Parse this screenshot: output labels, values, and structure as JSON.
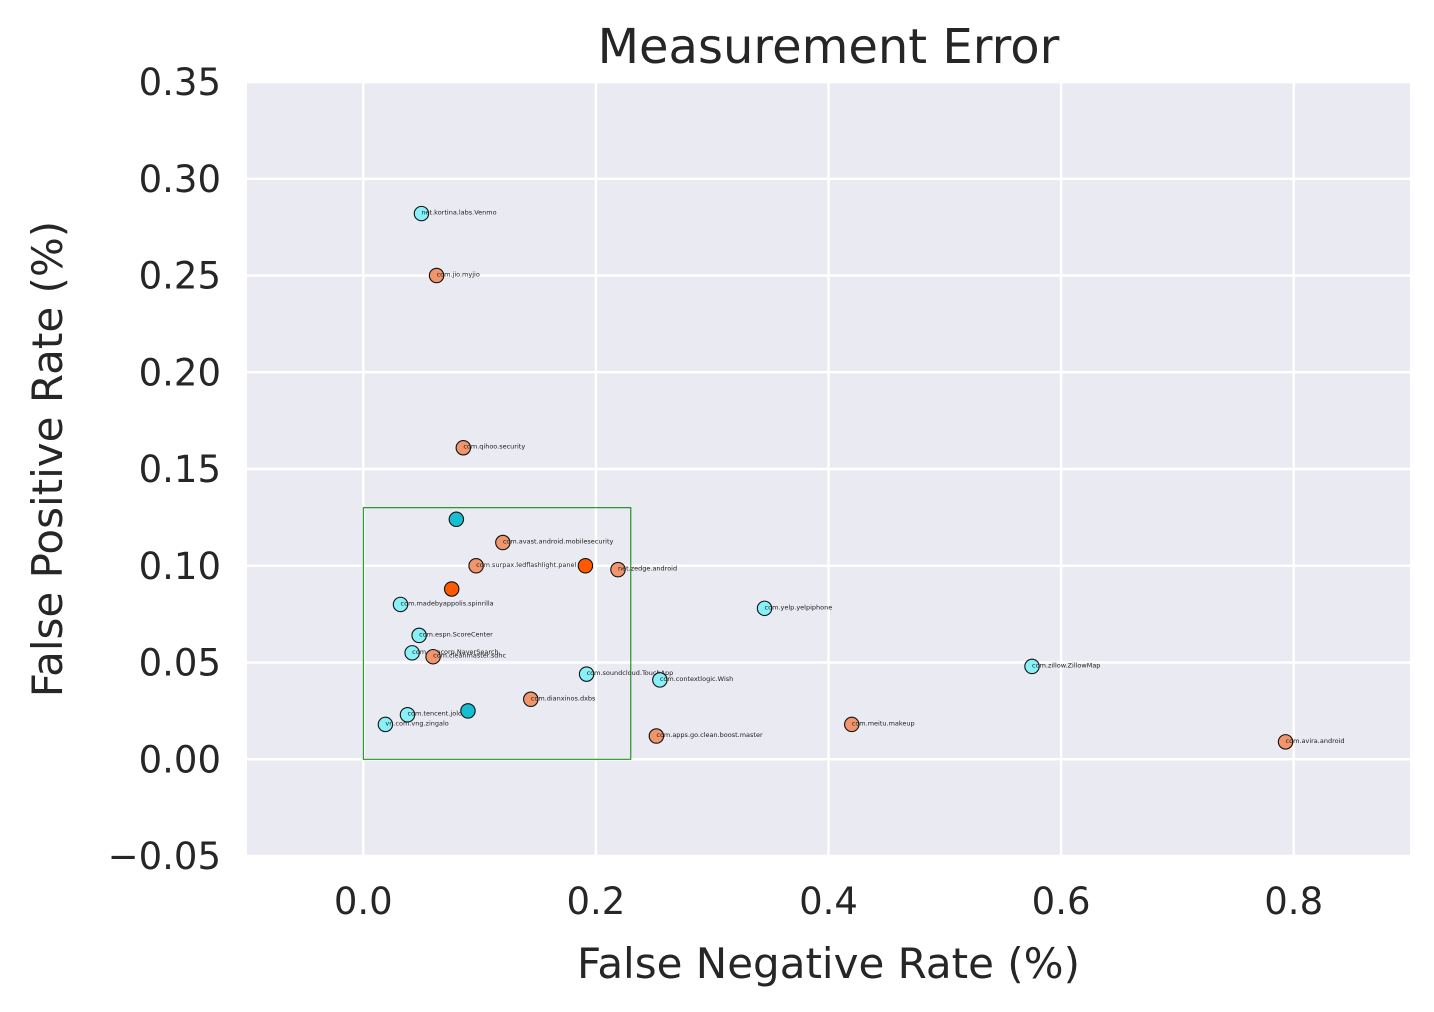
{
  "chart_data": {
    "type": "scatter",
    "title": "Measurement Error",
    "xlabel": "False Negative Rate (%)",
    "ylabel": "False Positive Rate (%)",
    "xlim": [
      -0.1,
      0.9
    ],
    "ylim": [
      -0.05,
      0.35
    ],
    "xticks": [
      0.0,
      0.2,
      0.4,
      0.6,
      0.8
    ],
    "xtick_labels": [
      "0.0",
      "0.2",
      "0.4",
      "0.6",
      "0.8"
    ],
    "yticks": [
      -0.05,
      0.0,
      0.05,
      0.1,
      0.15,
      0.2,
      0.25,
      0.3,
      0.35
    ],
    "ytick_labels": [
      "−0.05",
      "0.00",
      "0.05",
      "0.10",
      "0.15",
      "0.20",
      "0.25",
      "0.30",
      "0.35"
    ],
    "grid": true,
    "colors": {
      "background": "#eaeaf2",
      "grid": "#ffffff",
      "cyan_light": "#87f1f7",
      "cyan_dark": "#17becf",
      "orange_light": "#f0956c",
      "orange_dark": "#ff5a00",
      "highlight_box": "#008000"
    },
    "highlight_box": {
      "x": [
        0.0,
        0.23
      ],
      "y": [
        0.0,
        0.13
      ]
    },
    "points": [
      {
        "x": 0.05,
        "y": 0.282,
        "label": "net.kortina.labs.Venmo",
        "color": "#87f1f7"
      },
      {
        "x": 0.063,
        "y": 0.25,
        "label": "com.jio.myjio",
        "color": "#f0956c"
      },
      {
        "x": 0.086,
        "y": 0.161,
        "label": "com.qihoo.security",
        "color": "#f0956c"
      },
      {
        "x": 0.08,
        "y": 0.124,
        "label": "",
        "color": "#17becf"
      },
      {
        "x": 0.12,
        "y": 0.112,
        "label": "com.avast.android.mobilesecurity",
        "color": "#f0956c"
      },
      {
        "x": 0.097,
        "y": 0.1,
        "label": "com.surpax.ledflashlight.panel",
        "color": "#f0956c"
      },
      {
        "x": 0.191,
        "y": 0.1,
        "label": "",
        "color": "#ff5a00"
      },
      {
        "x": 0.219,
        "y": 0.098,
        "label": "net.zedge.android",
        "color": "#f0956c"
      },
      {
        "x": 0.076,
        "y": 0.088,
        "label": "",
        "color": "#ff5a00"
      },
      {
        "x": 0.032,
        "y": 0.08,
        "label": "com.madebyappolis.spinrilla",
        "color": "#87f1f7"
      },
      {
        "x": 0.345,
        "y": 0.078,
        "label": "com.yelp.yelpiphone",
        "color": "#87f1f7"
      },
      {
        "x": 0.048,
        "y": 0.064,
        "label": "com.espn.ScoreCenter",
        "color": "#87f1f7"
      },
      {
        "x": 0.042,
        "y": 0.055,
        "label": "com.nhncorp.NaverSearch",
        "color": "#87f1f7"
      },
      {
        "x": 0.06,
        "y": 0.053,
        "label": "com.cleanmaster.sdhc",
        "color": "#f0956c"
      },
      {
        "x": 0.575,
        "y": 0.048,
        "label": "com.zillow.ZillowMap",
        "color": "#87f1f7"
      },
      {
        "x": 0.192,
        "y": 0.044,
        "label": "com.soundcloud.TouchApp",
        "color": "#87f1f7"
      },
      {
        "x": 0.255,
        "y": 0.041,
        "label": "com.contextlogic.Wish",
        "color": "#87f1f7"
      },
      {
        "x": 0.144,
        "y": 0.031,
        "label": "com.dianxinos.dxbs",
        "color": "#f0956c"
      },
      {
        "x": 0.09,
        "y": 0.025,
        "label": "",
        "color": "#17becf"
      },
      {
        "x": 0.038,
        "y": 0.023,
        "label": "com.tencent.jolo",
        "color": "#87f1f7"
      },
      {
        "x": 0.42,
        "y": 0.018,
        "label": "com.meitu.makeup",
        "color": "#f0956c"
      },
      {
        "x": 0.019,
        "y": 0.018,
        "label": "vn.com.vng.zingalo",
        "color": "#87f1f7"
      },
      {
        "x": 0.252,
        "y": 0.012,
        "label": "com.apps.go.clean.boost.master",
        "color": "#f0956c"
      },
      {
        "x": 0.793,
        "y": 0.009,
        "label": "com.avira.android",
        "color": "#f0956c"
      }
    ]
  }
}
